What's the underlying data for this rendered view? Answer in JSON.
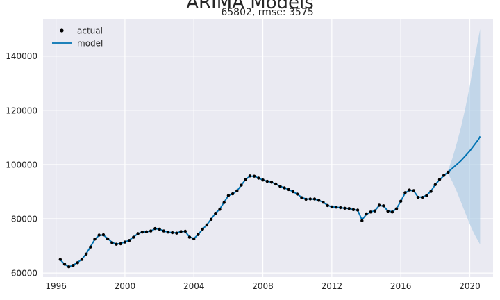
{
  "figure": {
    "suptitle": "ARIMA Models",
    "subtitle": "65802, rmse: 3575"
  },
  "legend": {
    "items": [
      {
        "label": "actual",
        "marker": "dot",
        "color": "#000000"
      },
      {
        "label": "model",
        "marker": "line",
        "color": "#0072b2"
      }
    ]
  },
  "colors": {
    "plot_background": "#eaeaf2",
    "grid": "#ffffff",
    "actual": "#000000",
    "model": "#0072b2",
    "confidence_band": "#a6c8e2"
  },
  "chart_data": {
    "type": "line",
    "title": "65802, rmse: 3575",
    "xlabel": "",
    "ylabel": "",
    "xlim": [
      1995.25,
      2021.35
    ],
    "ylim": [
      58500,
      153500
    ],
    "xticks": [
      1996,
      2000,
      2004,
      2008,
      2012,
      2016,
      2020
    ],
    "yticks": [
      60000,
      80000,
      100000,
      120000,
      140000
    ],
    "grid": true,
    "legend_position": "top-left",
    "series": [
      {
        "name": "actual",
        "style": "points",
        "points": [
          [
            1996.25,
            65000
          ],
          [
            1996.5,
            63300
          ],
          [
            1996.75,
            62300
          ],
          [
            1997.0,
            62800
          ],
          [
            1997.25,
            63800
          ],
          [
            1997.5,
            65000
          ],
          [
            1997.75,
            67000
          ],
          [
            1998.0,
            69600
          ],
          [
            1998.25,
            72500
          ],
          [
            1998.5,
            74000
          ],
          [
            1998.75,
            74100
          ],
          [
            1999.0,
            72600
          ],
          [
            1999.25,
            71200
          ],
          [
            1999.5,
            70600
          ],
          [
            1999.75,
            70800
          ],
          [
            2000.0,
            71400
          ],
          [
            2000.25,
            72000
          ],
          [
            2000.5,
            73200
          ],
          [
            2000.75,
            74500
          ],
          [
            2001.0,
            75100
          ],
          [
            2001.25,
            75200
          ],
          [
            2001.5,
            75500
          ],
          [
            2001.75,
            76400
          ],
          [
            2002.0,
            76200
          ],
          [
            2002.25,
            75500
          ],
          [
            2002.5,
            75100
          ],
          [
            2002.75,
            74900
          ],
          [
            2003.0,
            74700
          ],
          [
            2003.25,
            75300
          ],
          [
            2003.5,
            75400
          ],
          [
            2003.75,
            73200
          ],
          [
            2004.0,
            72600
          ],
          [
            2004.25,
            74200
          ],
          [
            2004.5,
            76200
          ],
          [
            2004.75,
            77700
          ],
          [
            2005.0,
            79800
          ],
          [
            2005.25,
            82000
          ],
          [
            2005.5,
            83500
          ],
          [
            2005.75,
            86000
          ],
          [
            2006.0,
            88600
          ],
          [
            2006.25,
            89200
          ],
          [
            2006.5,
            90300
          ],
          [
            2006.75,
            92400
          ],
          [
            2007.0,
            94500
          ],
          [
            2007.25,
            95800
          ],
          [
            2007.5,
            95700
          ],
          [
            2007.75,
            95000
          ],
          [
            2008.0,
            94300
          ],
          [
            2008.25,
            93800
          ],
          [
            2008.5,
            93500
          ],
          [
            2008.75,
            92800
          ],
          [
            2009.0,
            92000
          ],
          [
            2009.25,
            91400
          ],
          [
            2009.5,
            90800
          ],
          [
            2009.75,
            90000
          ],
          [
            2010.0,
            89100
          ],
          [
            2010.25,
            87800
          ],
          [
            2010.5,
            87200
          ],
          [
            2010.75,
            87300
          ],
          [
            2011.0,
            87300
          ],
          [
            2011.25,
            86800
          ],
          [
            2011.5,
            86100
          ],
          [
            2011.75,
            84900
          ],
          [
            2012.0,
            84400
          ],
          [
            2012.25,
            84300
          ],
          [
            2012.5,
            84100
          ],
          [
            2012.75,
            83900
          ],
          [
            2013.0,
            83800
          ],
          [
            2013.25,
            83400
          ],
          [
            2013.5,
            83200
          ],
          [
            2013.75,
            79300
          ],
          [
            2014.0,
            81800
          ],
          [
            2014.25,
            82500
          ],
          [
            2014.5,
            82900
          ],
          [
            2014.75,
            85000
          ],
          [
            2015.0,
            84800
          ],
          [
            2015.25,
            82800
          ],
          [
            2015.5,
            82500
          ],
          [
            2015.75,
            83700
          ],
          [
            2016.0,
            86500
          ],
          [
            2016.25,
            89600
          ],
          [
            2016.5,
            90600
          ],
          [
            2016.75,
            90400
          ],
          [
            2017.0,
            87900
          ],
          [
            2017.25,
            87900
          ],
          [
            2017.5,
            88600
          ],
          [
            2017.75,
            90100
          ],
          [
            2018.0,
            92600
          ],
          [
            2018.25,
            94500
          ],
          [
            2018.5,
            96000
          ],
          [
            2018.75,
            97200
          ]
        ]
      },
      {
        "name": "model",
        "style": "line",
        "points": [
          [
            1996.25,
            64900
          ],
          [
            1996.5,
            63200
          ],
          [
            1996.75,
            62300
          ],
          [
            1997.0,
            62900
          ],
          [
            1997.25,
            63900
          ],
          [
            1997.5,
            65100
          ],
          [
            1997.75,
            67100
          ],
          [
            1998.0,
            69700
          ],
          [
            1998.25,
            72400
          ],
          [
            1998.5,
            73900
          ],
          [
            1998.75,
            74000
          ],
          [
            1999.0,
            72700
          ],
          [
            1999.25,
            71300
          ],
          [
            1999.5,
            70700
          ],
          [
            1999.75,
            70900
          ],
          [
            2000.0,
            71400
          ],
          [
            2000.25,
            72100
          ],
          [
            2000.5,
            73300
          ],
          [
            2000.75,
            74500
          ],
          [
            2001.0,
            75100
          ],
          [
            2001.25,
            75200
          ],
          [
            2001.5,
            75500
          ],
          [
            2001.75,
            76300
          ],
          [
            2002.0,
            76200
          ],
          [
            2002.25,
            75500
          ],
          [
            2002.5,
            75100
          ],
          [
            2002.75,
            74900
          ],
          [
            2003.0,
            74800
          ],
          [
            2003.25,
            75300
          ],
          [
            2003.5,
            75300
          ],
          [
            2003.75,
            73300
          ],
          [
            2004.0,
            72700
          ],
          [
            2004.25,
            74200
          ],
          [
            2004.5,
            76100
          ],
          [
            2004.75,
            77800
          ],
          [
            2005.0,
            79900
          ],
          [
            2005.25,
            82000
          ],
          [
            2005.5,
            83600
          ],
          [
            2005.75,
            86100
          ],
          [
            2006.0,
            88500
          ],
          [
            2006.25,
            89200
          ],
          [
            2006.5,
            90300
          ],
          [
            2006.75,
            92400
          ],
          [
            2007.0,
            94500
          ],
          [
            2007.25,
            95700
          ],
          [
            2007.5,
            95700
          ],
          [
            2007.75,
            95000
          ],
          [
            2008.0,
            94300
          ],
          [
            2008.25,
            93800
          ],
          [
            2008.5,
            93500
          ],
          [
            2008.75,
            92800
          ],
          [
            2009.0,
            92000
          ],
          [
            2009.25,
            91400
          ],
          [
            2009.5,
            90800
          ],
          [
            2009.75,
            90000
          ],
          [
            2010.0,
            89100
          ],
          [
            2010.25,
            87900
          ],
          [
            2010.5,
            87300
          ],
          [
            2010.75,
            87300
          ],
          [
            2011.0,
            87200
          ],
          [
            2011.25,
            86800
          ],
          [
            2011.5,
            86100
          ],
          [
            2011.75,
            85000
          ],
          [
            2012.0,
            84400
          ],
          [
            2012.25,
            84300
          ],
          [
            2012.5,
            84100
          ],
          [
            2012.75,
            83900
          ],
          [
            2013.0,
            83800
          ],
          [
            2013.25,
            83400
          ],
          [
            2013.5,
            83100
          ],
          [
            2013.75,
            79600
          ],
          [
            2014.0,
            81600
          ],
          [
            2014.25,
            82500
          ],
          [
            2014.5,
            83000
          ],
          [
            2014.75,
            84900
          ],
          [
            2015.0,
            84700
          ],
          [
            2015.25,
            82900
          ],
          [
            2015.5,
            82600
          ],
          [
            2015.75,
            83800
          ],
          [
            2016.0,
            86500
          ],
          [
            2016.25,
            89500
          ],
          [
            2016.5,
            90500
          ],
          [
            2016.75,
            90300
          ],
          [
            2017.0,
            88000
          ],
          [
            2017.25,
            88000
          ],
          [
            2017.5,
            88700
          ],
          [
            2017.75,
            90200
          ],
          [
            2018.0,
            92600
          ],
          [
            2018.25,
            94400
          ],
          [
            2018.5,
            95900
          ],
          [
            2018.75,
            97300
          ],
          [
            2019.0,
            98700
          ],
          [
            2019.5,
            101500
          ],
          [
            2020.0,
            105000
          ],
          [
            2020.3,
            107500
          ],
          [
            2020.5,
            109200
          ],
          [
            2020.6,
            110400
          ]
        ]
      }
    ],
    "confidence_band": {
      "x": [
        2018.75,
        2019.0,
        2019.25,
        2019.5,
        2019.75,
        2020.0,
        2020.25,
        2020.6
      ],
      "upper": [
        98000,
        102500,
        108000,
        114000,
        121000,
        129000,
        138000,
        150000
      ],
      "lower": [
        96500,
        93500,
        90000,
        86000,
        82000,
        78000,
        74500,
        70500
      ]
    }
  }
}
